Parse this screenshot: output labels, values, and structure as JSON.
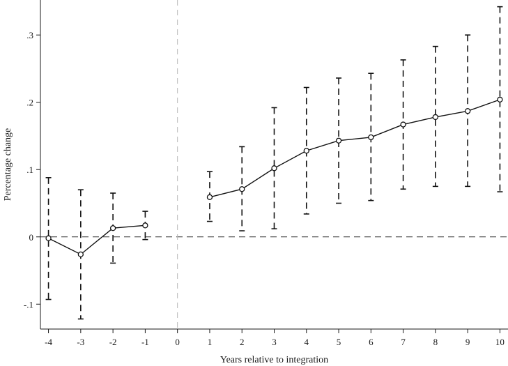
{
  "chart_data": {
    "type": "line",
    "xlabel": "Years relative to integration",
    "ylabel": "Percentage change",
    "x_ticks": [
      "-4",
      "-3",
      "-2",
      "-1",
      "0",
      "1",
      "2",
      "3",
      "4",
      "5",
      "6",
      "7",
      "8",
      "9",
      "10"
    ],
    "y_ticks": [
      "-.1",
      "0",
      ".1",
      ".2",
      ".3"
    ],
    "xlim": [
      -4.25,
      10.25
    ],
    "ylim": [
      -0.137,
      0.352
    ],
    "reference_lines": {
      "horizontal_y": 0,
      "vertical_x": 0
    },
    "grid": false,
    "series": [
      {
        "segment": "pre",
        "x": [
          -4,
          -3,
          -2,
          -1
        ],
        "y": [
          -0.002,
          -0.026,
          0.013,
          0.017
        ],
        "ci_low": [
          -0.093,
          -0.122,
          -0.039,
          -0.004
        ],
        "ci_high": [
          0.088,
          0.07,
          0.065,
          0.038
        ]
      },
      {
        "segment": "post",
        "x": [
          1,
          2,
          3,
          4,
          5,
          6,
          7,
          8,
          9,
          10
        ],
        "y": [
          0.059,
          0.071,
          0.102,
          0.128,
          0.143,
          0.148,
          0.167,
          0.178,
          0.187,
          0.204
        ],
        "ci_low": [
          0.023,
          0.009,
          0.012,
          0.034,
          0.05,
          0.054,
          0.071,
          0.075,
          0.075,
          0.067
        ],
        "ci_high": [
          0.097,
          0.134,
          0.192,
          0.222,
          0.236,
          0.243,
          0.263,
          0.283,
          0.3,
          0.342
        ]
      }
    ]
  }
}
